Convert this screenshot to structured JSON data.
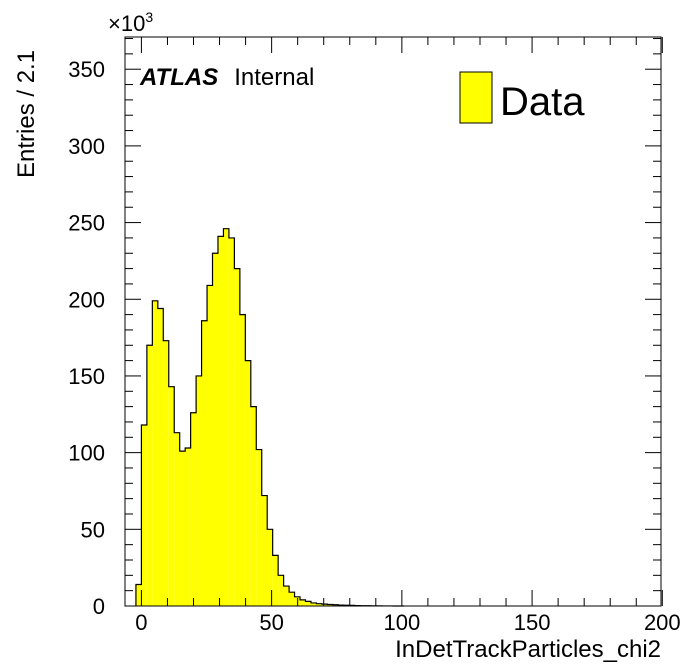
{
  "chart_data": {
    "type": "bar",
    "xlabel": "InDetTrackParticles_chi2",
    "ylabel": "Entries / 2.1",
    "y_multiplier": "×10",
    "y_multiplier_exp": "3",
    "xlim": [
      -6.3,
      199.5
    ],
    "ylim": [
      0,
      371
    ],
    "bin_width": 2.1,
    "bins_start": -2.1,
    "x_ticks": [
      0,
      50,
      100,
      150,
      200
    ],
    "y_ticks": [
      0,
      50,
      100,
      150,
      200,
      250,
      300,
      350
    ],
    "fill_color": "#ffff00",
    "grid": false,
    "legend": {
      "position": "top-right",
      "entries": [
        "Data"
      ]
    },
    "annotation": {
      "bold": "ATLAS",
      "text": "Internal"
    },
    "values": [
      14,
      118,
      170,
      199,
      194,
      173,
      143,
      113,
      101,
      103,
      126,
      150,
      186,
      209,
      230,
      241,
      246,
      240,
      220,
      190,
      160,
      130,
      102,
      72,
      50,
      33,
      20,
      13,
      9,
      6,
      4,
      3,
      2,
      1.5,
      1.2,
      1,
      0.8,
      0.6,
      0.5,
      0.4,
      0.3,
      0.2,
      0.15,
      0.1,
      0.08,
      0.05,
      0.03,
      0.02,
      0.01
    ]
  }
}
